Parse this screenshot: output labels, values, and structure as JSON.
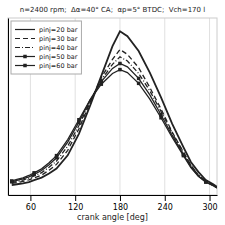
{
  "chart_data": {
    "type": "line",
    "title": "n=2400 rpm;  Δα=40° CA;  αp=5° BTDC;  Vch=170 l",
    "x_label": "crank angle [deg]",
    "x": [
      35,
      42,
      50,
      58,
      65,
      75,
      85,
      95,
      110,
      125,
      140,
      155,
      170,
      180,
      190,
      205,
      220,
      235,
      250,
      265,
      275,
      285,
      295,
      305,
      310
    ],
    "xlim": [
      30,
      310
    ],
    "xticks": [
      60,
      120,
      180,
      240,
      300
    ],
    "ylim": [
      -0.02,
      1.05
    ],
    "yticks": [],
    "tick_labels": "x",
    "grid": true,
    "legend": "upper left",
    "series": [
      {
        "name": "pinj=20 bar",
        "color": "#222222",
        "line_style": "solid",
        "values": [
          0.04,
          0.045,
          0.05,
          0.058,
          0.07,
          0.085,
          0.11,
          0.14,
          0.22,
          0.35,
          0.52,
          0.7,
          0.88,
          0.97,
          0.94,
          0.85,
          0.72,
          0.57,
          0.41,
          0.27,
          0.18,
          0.12,
          0.07,
          0.045,
          0.03
        ]
      },
      {
        "name": "pinj=30 bar",
        "color": "#222222",
        "line_style": "dashed",
        "values": [
          0.05,
          0.055,
          0.062,
          0.072,
          0.083,
          0.1,
          0.13,
          0.165,
          0.25,
          0.38,
          0.54,
          0.69,
          0.8,
          0.86,
          0.83,
          0.75,
          0.63,
          0.5,
          0.36,
          0.24,
          0.16,
          0.1,
          0.065,
          0.04,
          0.025
        ]
      },
      {
        "name": "pinj=40 bar",
        "color": "#222222",
        "line_style": "dashdot",
        "values": [
          0.055,
          0.062,
          0.07,
          0.082,
          0.095,
          0.115,
          0.148,
          0.185,
          0.275,
          0.4,
          0.545,
          0.675,
          0.77,
          0.815,
          0.79,
          0.715,
          0.61,
          0.485,
          0.355,
          0.235,
          0.158,
          0.1,
          0.063,
          0.038,
          0.023
        ]
      },
      {
        "name": "pinj=50 bar",
        "color": "#222222",
        "line_style": "solid",
        "marker": "square",
        "values": [
          0.06,
          0.068,
          0.077,
          0.09,
          0.105,
          0.128,
          0.163,
          0.205,
          0.3,
          0.42,
          0.555,
          0.665,
          0.745,
          0.775,
          0.755,
          0.685,
          0.585,
          0.465,
          0.34,
          0.225,
          0.15,
          0.095,
          0.06,
          0.037,
          0.022
        ],
        "markers": {
          "x": [
            35,
            65,
            95,
            125,
            155,
            180,
            205,
            235,
            265,
            295
          ],
          "values": [
            0.06,
            0.105,
            0.205,
            0.42,
            0.665,
            0.775,
            0.685,
            0.465,
            0.225,
            0.06
          ]
        }
      },
      {
        "name": "pinj=60 bar",
        "color": "#222222",
        "line_style": "solid",
        "marker": "square",
        "values": [
          0.065,
          0.074,
          0.084,
          0.098,
          0.114,
          0.138,
          0.175,
          0.218,
          0.315,
          0.435,
          0.555,
          0.65,
          0.715,
          0.738,
          0.72,
          0.655,
          0.56,
          0.447,
          0.328,
          0.218,
          0.146,
          0.093,
          0.058,
          0.036,
          0.022
        ],
        "markers": {
          "x": [
            35,
            65,
            95,
            125,
            155,
            180,
            205,
            235,
            265,
            295
          ],
          "values": [
            0.065,
            0.114,
            0.218,
            0.435,
            0.65,
            0.738,
            0.655,
            0.447,
            0.218,
            0.058
          ]
        }
      }
    ]
  }
}
